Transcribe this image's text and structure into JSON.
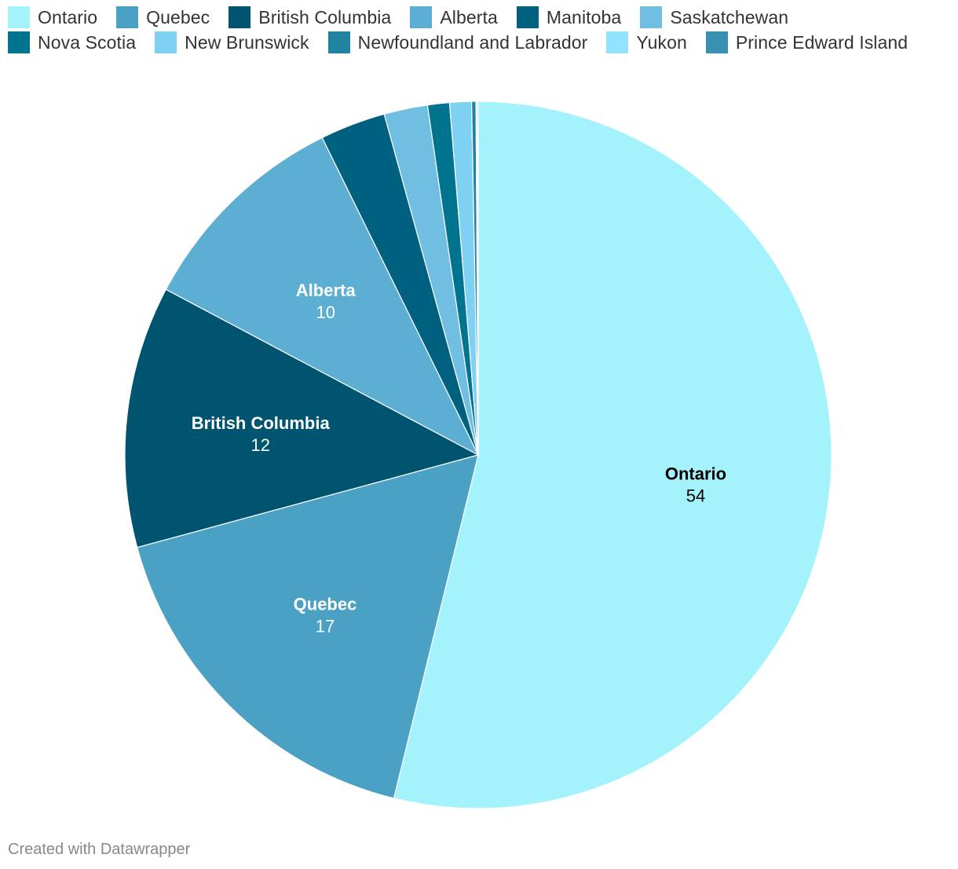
{
  "chart_data": {
    "type": "pie",
    "categories": [
      "Ontario",
      "Quebec",
      "British Columbia",
      "Alberta",
      "Manitoba",
      "Saskatchewan",
      "Nova Scotia",
      "New Brunswick",
      "Newfoundland and Labrador",
      "Yukon",
      "Prince Edward Island"
    ],
    "values": [
      54,
      17,
      12,
      10,
      3,
      2,
      1,
      1,
      0.2,
      0.05,
      0.05
    ],
    "colors": [
      "#a3f2fc",
      "#4ba1c4",
      "#005470",
      "#5cafd3",
      "#00607f",
      "#70bfe2",
      "#00738f",
      "#7fd1f3",
      "#2083a0",
      "#92e3fd",
      "#3a90b2"
    ],
    "label_text_colors": [
      "#000000",
      "#ffffff",
      "#ffffff",
      "#ffffff"
    ],
    "labeled_slices": 4,
    "legend_placement": "top",
    "title": ""
  },
  "legend": {
    "rows": [
      [
        0,
        1,
        2,
        3,
        4,
        5
      ],
      [
        6,
        7,
        8,
        9,
        10
      ]
    ]
  },
  "footer": {
    "credit": "Created with Datawrapper"
  }
}
